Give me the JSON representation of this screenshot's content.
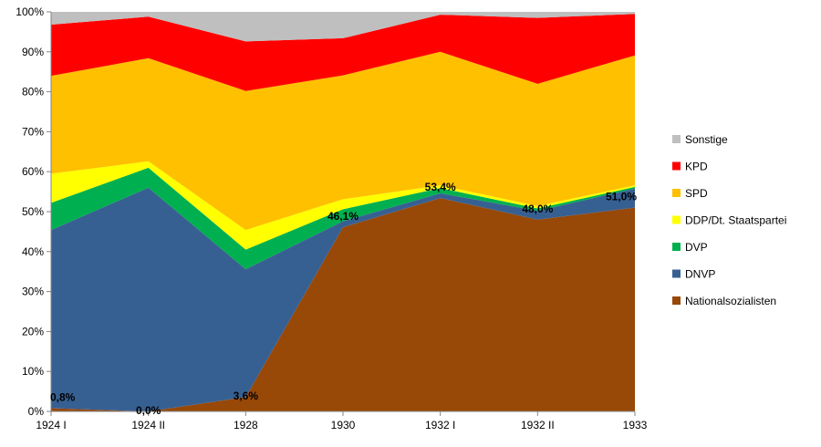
{
  "chart_data": {
    "type": "area",
    "stacked": true,
    "percent": true,
    "categories": [
      "1924 I",
      "1924 II",
      "1928",
      "1930",
      "1932 I",
      "1932 II",
      "1933"
    ],
    "ylim": [
      0,
      100
    ],
    "y_ticks": [
      "0%",
      "10%",
      "20%",
      "30%",
      "40%",
      "50%",
      "60%",
      "70%",
      "80%",
      "90%",
      "100%"
    ],
    "grid": false,
    "legend_position": "right",
    "series": [
      {
        "name": "Nationalsozialisten",
        "color": "#984807",
        "values": [
          0.8,
          0.0,
          3.6,
          46.1,
          53.4,
          48.0,
          51.0
        ]
      },
      {
        "name": "DNVP",
        "color": "#376092",
        "values": [
          44.6,
          56.0,
          32.0,
          1.5,
          1.2,
          2.2,
          4.8
        ]
      },
      {
        "name": "DVP",
        "color": "#00B050",
        "values": [
          6.8,
          5.0,
          4.9,
          3.0,
          1.3,
          0.6,
          0.4
        ]
      },
      {
        "name": "DDP/Dt. Staatspartei",
        "color": "#FFFF00",
        "values": [
          7.3,
          1.6,
          4.9,
          2.5,
          0.7,
          0.6,
          0.4
        ]
      },
      {
        "name": "SPD",
        "color": "#FFC000",
        "values": [
          24.5,
          25.8,
          34.8,
          31.0,
          33.4,
          30.6,
          32.5
        ]
      },
      {
        "name": "KPD",
        "color": "#FF0000",
        "values": [
          12.8,
          10.4,
          12.4,
          9.3,
          9.3,
          16.5,
          10.4
        ]
      },
      {
        "name": "Sonstige",
        "color": "#BFBFBF",
        "values": [
          3.2,
          1.2,
          7.4,
          6.6,
          0.7,
          1.5,
          0.5
        ]
      }
    ],
    "data_labels": [
      "0,8%",
      "0,0%",
      "3,6%",
      "46,1%",
      "53,4%",
      "48,0%",
      "51,0%"
    ],
    "legend_order": [
      "Sonstige",
      "KPD",
      "SPD",
      "DDP/Dt. Staatspartei",
      "DVP",
      "DNVP",
      "Nationalsozialisten"
    ]
  }
}
